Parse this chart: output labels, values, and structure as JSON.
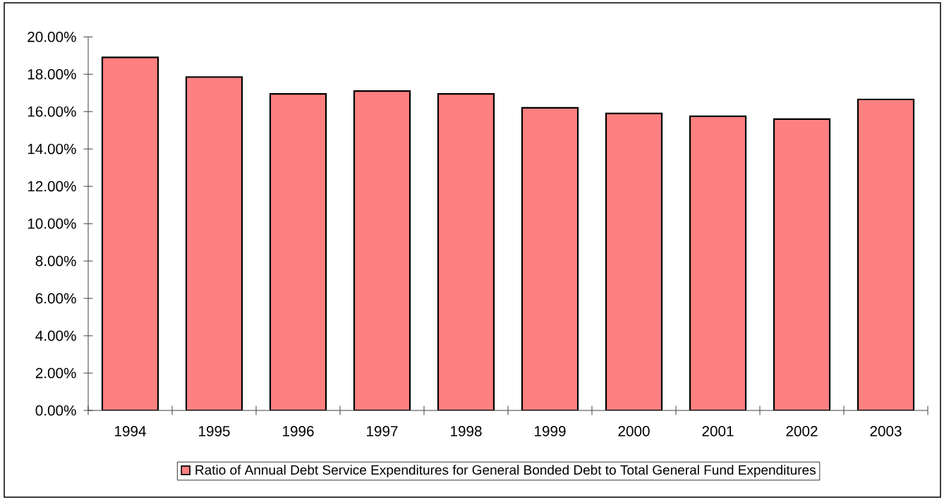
{
  "chart_data": {
    "type": "bar",
    "categories": [
      "1994",
      "1995",
      "1996",
      "1997",
      "1998",
      "1999",
      "2000",
      "2001",
      "2002",
      "2003"
    ],
    "series": [
      {
        "name": "Ratio of Annual Debt Service Expenditures for General Bonded Debt to Total General Fund Expenditures",
        "color": "#ff8080",
        "values": [
          18.9,
          17.85,
          16.95,
          17.1,
          16.95,
          16.2,
          15.9,
          15.75,
          15.6,
          16.65
        ]
      }
    ],
    "ylim": [
      0,
      20
    ],
    "yticks": [
      {
        "value": 0,
        "label": "0.00%"
      },
      {
        "value": 2,
        "label": "2.00%"
      },
      {
        "value": 4,
        "label": "4.00%"
      },
      {
        "value": 6,
        "label": "6.00%"
      },
      {
        "value": 8,
        "label": "8.00%"
      },
      {
        "value": 10,
        "label": "10.00%"
      },
      {
        "value": 12,
        "label": "12.00%"
      },
      {
        "value": 14,
        "label": "14.00%"
      },
      {
        "value": 16,
        "label": "16.00%"
      },
      {
        "value": 18,
        "label": "18.00%"
      },
      {
        "value": 20,
        "label": "20.00%"
      }
    ],
    "legend": "bottom"
  }
}
